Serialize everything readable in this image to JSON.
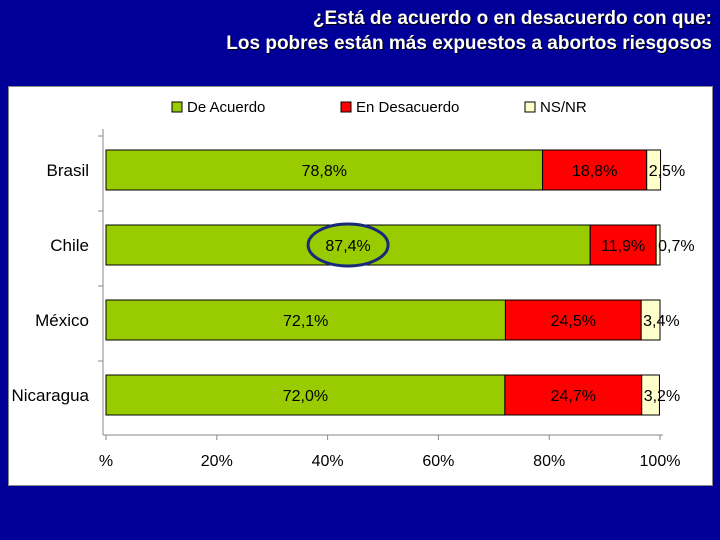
{
  "slide": {
    "title_line1": "¿Está de acuerdo o en desacuerdo con que:",
    "title_line2": "Los pobres están más expuestos a abortos riesgosos"
  },
  "colors": {
    "background": "#000099",
    "de_acuerdo": "#99cc00",
    "en_desacuerdo": "#ff0000",
    "nsnr": "#ffffcc",
    "highlight_ellipse": "#1a2a7a"
  },
  "chart_data": {
    "type": "bar",
    "orientation": "horizontal",
    "stacked": "100%",
    "categories": [
      "Brasil",
      "Chile",
      "México",
      "Nicaragua"
    ],
    "series": [
      {
        "name": "De Acuerdo",
        "color": "#99cc00",
        "values": [
          78.8,
          87.4,
          72.1,
          72.0
        ],
        "labels": [
          "78,8%",
          "87,4%",
          "72,1%",
          "72,0%"
        ]
      },
      {
        "name": "En Desacuerdo",
        "color": "#ff0000",
        "values": [
          18.8,
          11.9,
          24.5,
          24.7
        ],
        "labels": [
          "18,8%",
          "11,9%",
          "24,5%",
          "24,7%"
        ]
      },
      {
        "name": "NS/NR",
        "color": "#ffffcc",
        "values": [
          2.5,
          0.7,
          3.4,
          3.2
        ],
        "labels": [
          "2,5%",
          "0,7%",
          "3,4%",
          "3,2%"
        ]
      }
    ],
    "xlim": [
      0,
      100
    ],
    "xticks": [
      "%",
      "20%",
      "40%",
      "60%",
      "80%",
      "100%"
    ],
    "legend_position": "top",
    "grid": false,
    "highlight": {
      "category": "Chile",
      "series": "De Acuerdo"
    }
  }
}
